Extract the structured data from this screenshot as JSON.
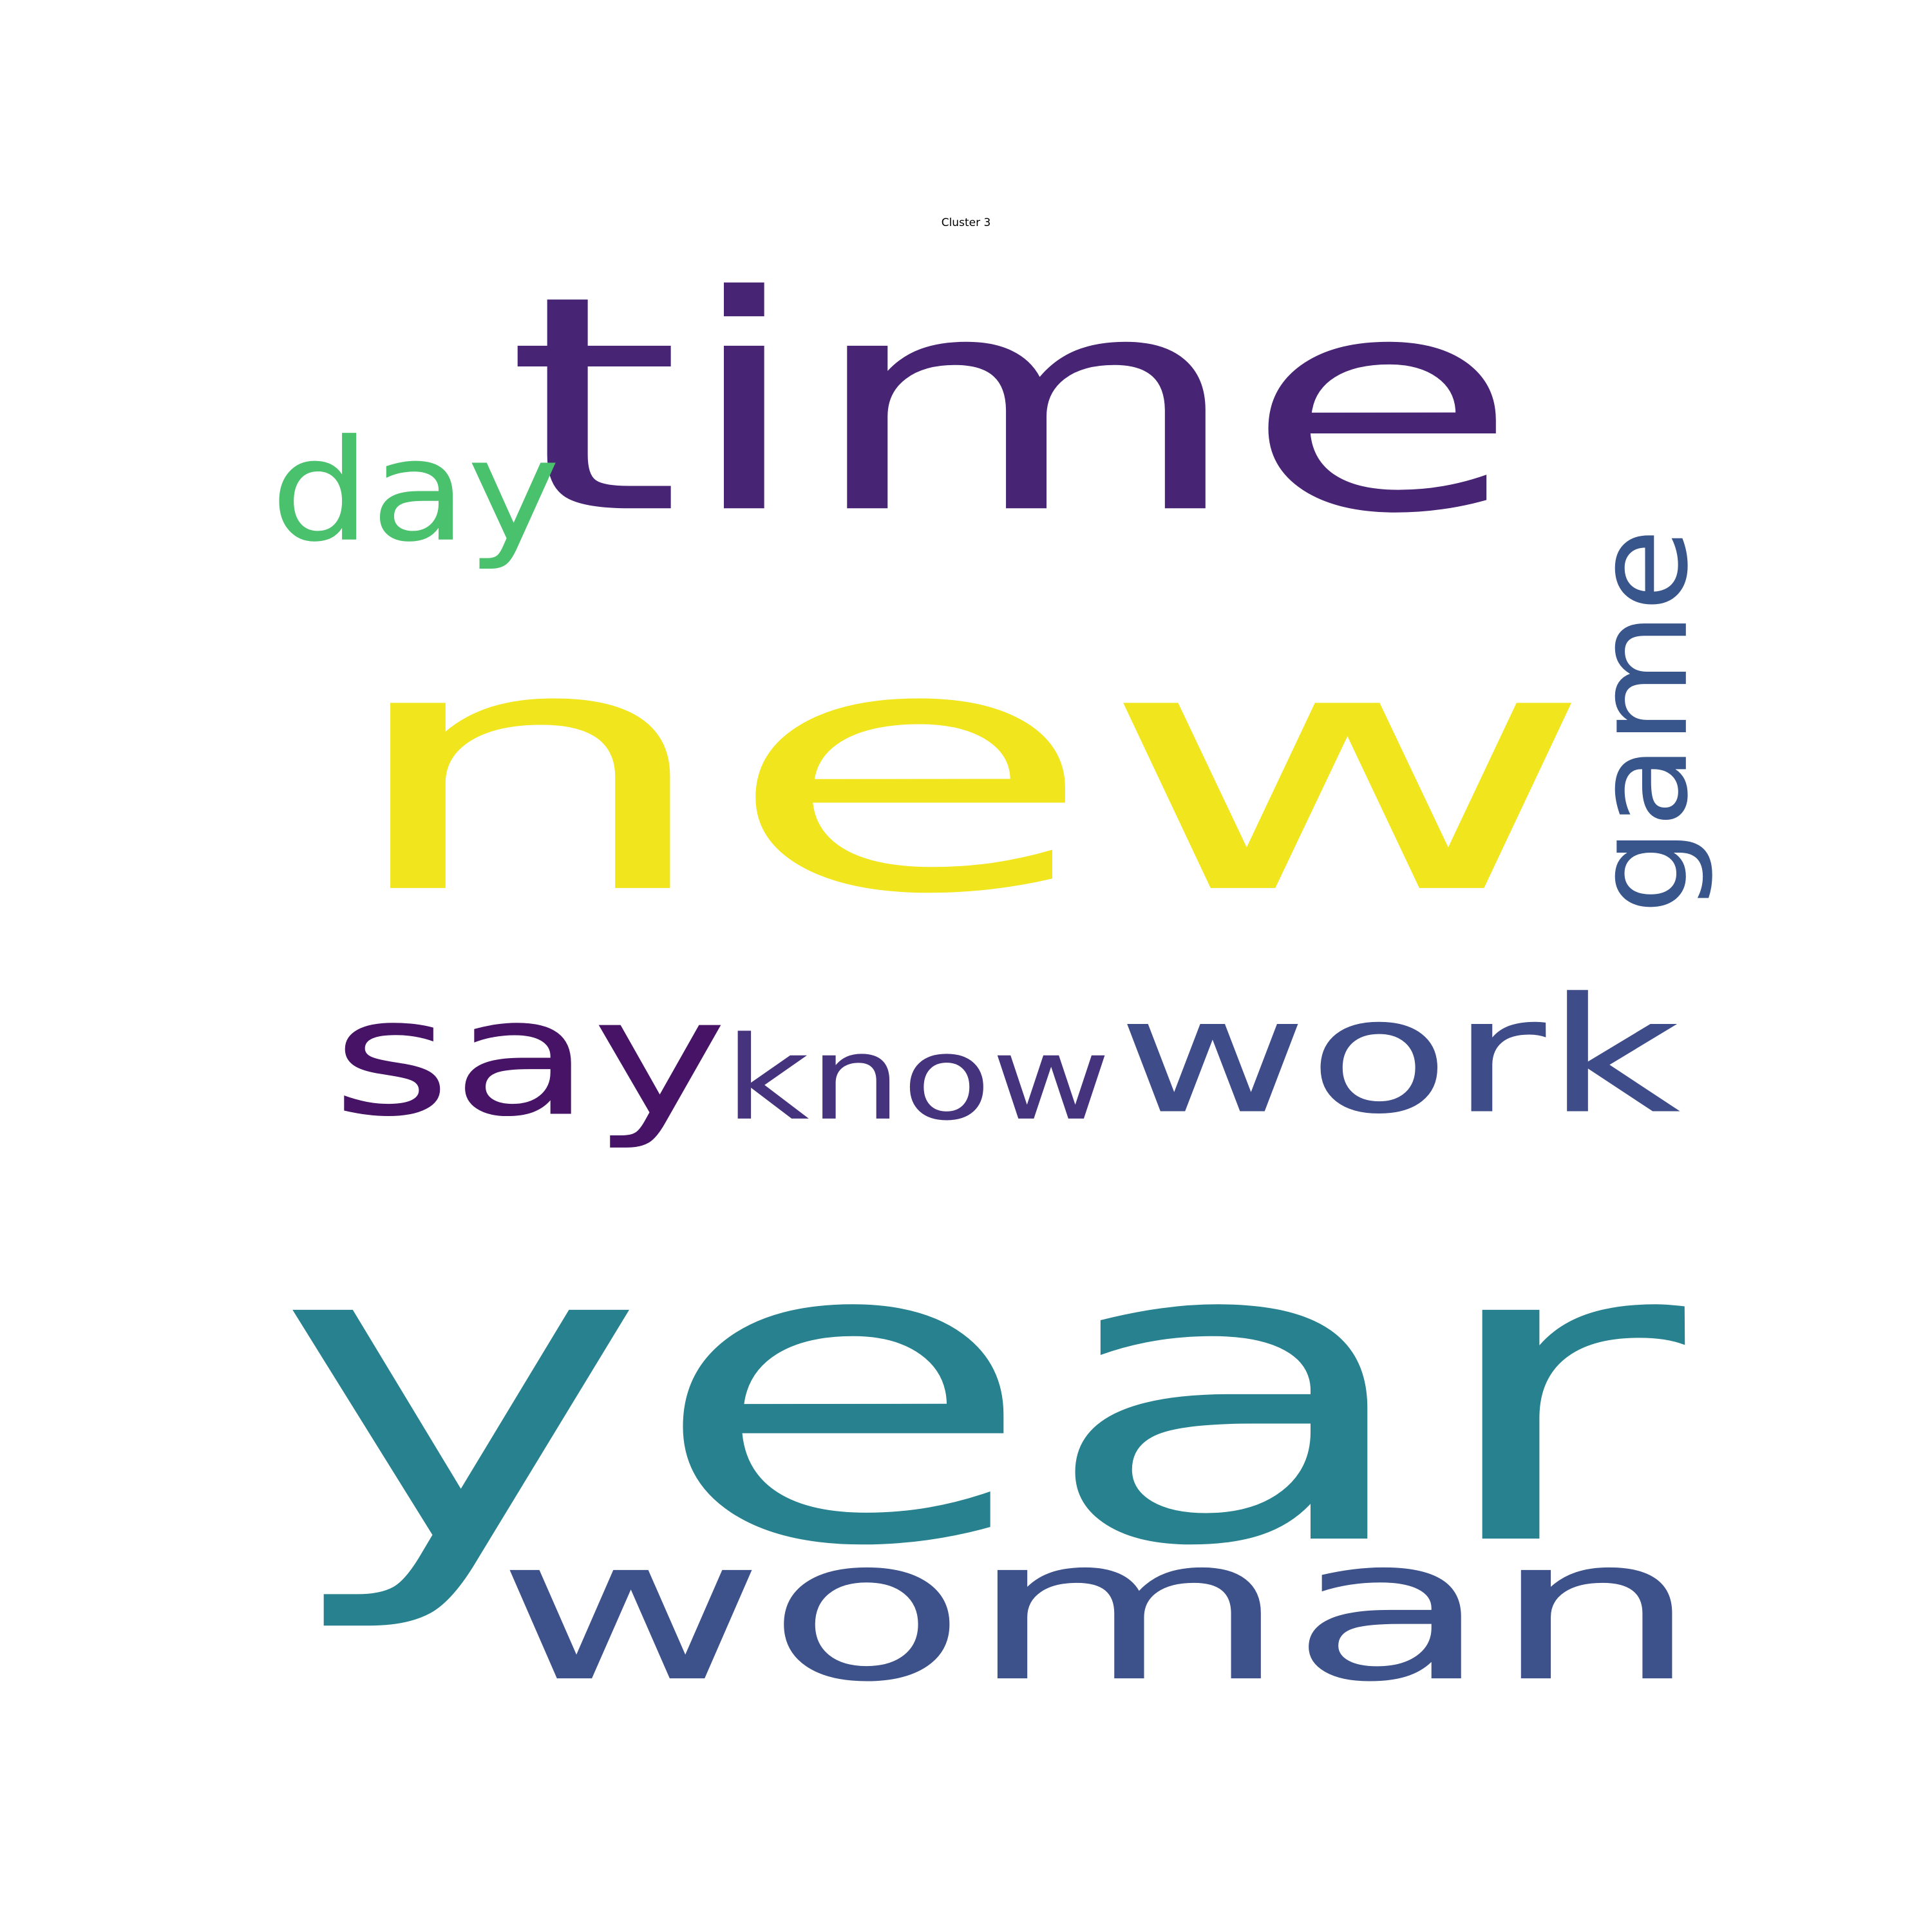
{
  "title": "Cluster 3",
  "words": [
    {
      "text": "new",
      "color": "#f1e51d",
      "orientation": "horizontal"
    },
    {
      "text": "year",
      "color": "#27818e",
      "orientation": "horizontal"
    },
    {
      "text": "time",
      "color": "#482475",
      "orientation": "horizontal"
    },
    {
      "text": "woman",
      "color": "#3d528a",
      "orientation": "horizontal"
    },
    {
      "text": "work",
      "color": "#3e4c8a",
      "orientation": "horizontal"
    },
    {
      "text": "say",
      "color": "#471366",
      "orientation": "horizontal"
    },
    {
      "text": "know",
      "color": "#46337e",
      "orientation": "horizontal"
    },
    {
      "text": "game",
      "color": "#39568c",
      "orientation": "vertical"
    },
    {
      "text": "day",
      "color": "#4ac16d",
      "orientation": "horizontal"
    }
  ]
}
